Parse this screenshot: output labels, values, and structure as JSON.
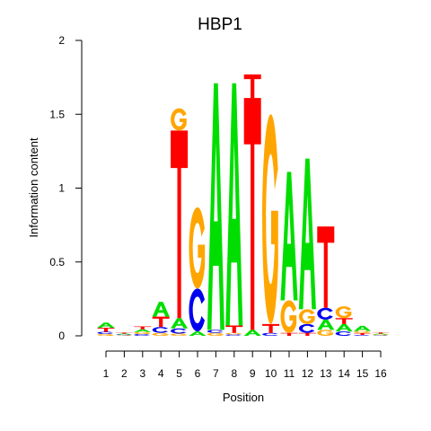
{
  "chart_data": {
    "type": "sequence-logo",
    "title": "HBP1",
    "xlabel": "Position",
    "ylabel": "Information content",
    "ylim": [
      0,
      2
    ],
    "yticks": [
      {
        "value": 0,
        "label": "0"
      },
      {
        "value": 0.5,
        "label": "0.5"
      },
      {
        "value": 1,
        "label": "1"
      },
      {
        "value": 1.5,
        "label": "1.5"
      },
      {
        "value": 2,
        "label": "2"
      }
    ],
    "positions": [
      1,
      2,
      3,
      4,
      5,
      6,
      7,
      8,
      9,
      10,
      11,
      12,
      13,
      14,
      15,
      16
    ],
    "position_labels": [
      "1",
      "2",
      "3",
      "4",
      "5",
      "6",
      "7",
      "8",
      "9",
      "10",
      "11",
      "12",
      "13",
      "14",
      "15",
      "16"
    ],
    "colors": {
      "A": "#00dd00",
      "C": "#0000ee",
      "G": "#ffa500",
      "T": "#ff0000"
    },
    "stacks": [
      [
        {
          "letter": "G",
          "height": 0.012
        },
        {
          "letter": "C",
          "height": 0.015
        },
        {
          "letter": "T",
          "height": 0.028
        },
        {
          "letter": "A",
          "height": 0.035
        }
      ],
      [
        {
          "letter": "G",
          "height": 0.004
        },
        {
          "letter": "C",
          "height": 0.005
        },
        {
          "letter": "A",
          "height": 0.006
        },
        {
          "letter": "T",
          "height": 0.007
        }
      ],
      [
        {
          "letter": "C",
          "height": 0.012
        },
        {
          "letter": "G",
          "height": 0.014
        },
        {
          "letter": "A",
          "height": 0.018
        },
        {
          "letter": "T",
          "height": 0.02
        }
      ],
      [
        {
          "letter": "G",
          "height": 0.02
        },
        {
          "letter": "C",
          "height": 0.04
        },
        {
          "letter": "T",
          "height": 0.07
        },
        {
          "letter": "A",
          "height": 0.1
        }
      ],
      [
        {
          "letter": "G",
          "height": 0.015
        },
        {
          "letter": "C",
          "height": 0.035
        },
        {
          "letter": "A",
          "height": 0.07
        },
        {
          "letter": "T",
          "height": 1.27
        },
        {
          "letter": "G",
          "height": 0.15
        }
      ],
      [
        {
          "letter": "A",
          "height": 0.03
        },
        {
          "letter": "C",
          "height": 0.29
        },
        {
          "letter": "G",
          "height": 0.55
        }
      ],
      [
        {
          "letter": "G",
          "height": 0.02
        },
        {
          "letter": "C",
          "height": 0.02
        },
        {
          "letter": "A",
          "height": 1.67
        }
      ],
      [
        {
          "letter": "C",
          "height": 0.01
        },
        {
          "letter": "G",
          "height": 0.01
        },
        {
          "letter": "T",
          "height": 0.05
        },
        {
          "letter": "A",
          "height": 1.64
        }
      ],
      [
        {
          "letter": "A",
          "height": 0.04
        },
        {
          "letter": "T",
          "height": 1.57
        },
        {
          "letter": "T",
          "height": 0.16
        }
      ],
      [
        {
          "letter": "C",
          "height": 0.02
        },
        {
          "letter": "T",
          "height": 0.06
        },
        {
          "letter": "G",
          "height": 1.42
        }
      ],
      [
        {
          "letter": "T",
          "height": 0.02
        },
        {
          "letter": "G",
          "height": 0.22
        },
        {
          "letter": "A",
          "height": 0.87
        }
      ],
      [
        {
          "letter": "T",
          "height": 0.02
        },
        {
          "letter": "C",
          "height": 0.06
        },
        {
          "letter": "G",
          "height": 0.1
        },
        {
          "letter": "A",
          "height": 1.02
        }
      ],
      [
        {
          "letter": "G",
          "height": 0.04
        },
        {
          "letter": "A",
          "height": 0.07
        },
        {
          "letter": "C",
          "height": 0.08
        },
        {
          "letter": "T",
          "height": 0.55
        }
      ],
      [
        {
          "letter": "C",
          "height": 0.03
        },
        {
          "letter": "A",
          "height": 0.05
        },
        {
          "letter": "T",
          "height": 0.04
        },
        {
          "letter": "G",
          "height": 0.08
        }
      ],
      [
        {
          "letter": "C",
          "height": 0.006
        },
        {
          "letter": "T",
          "height": 0.012
        },
        {
          "letter": "G",
          "height": 0.015
        },
        {
          "letter": "A",
          "height": 0.035
        }
      ],
      [
        {
          "letter": "C",
          "height": 0.004
        },
        {
          "letter": "G",
          "height": 0.005
        },
        {
          "letter": "A",
          "height": 0.006
        },
        {
          "letter": "T",
          "height": 0.008
        }
      ]
    ]
  }
}
